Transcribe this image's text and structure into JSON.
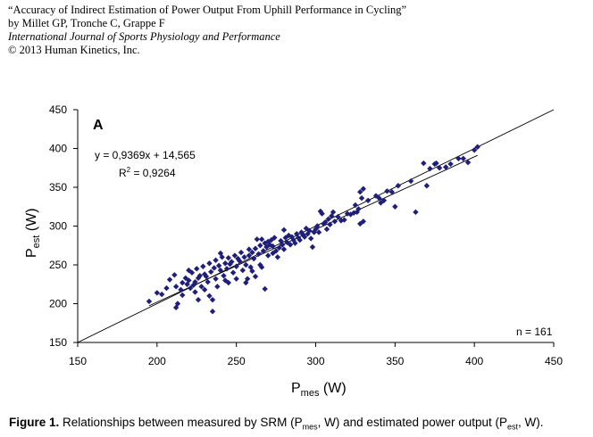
{
  "header": {
    "line1": "“Accuracy of Indirect Estimation of Power Output From Uphill Performance in Cycling”",
    "line2": "by Millet GP, Tronche C, Grappe F",
    "line3": "International Journal of Sports Physiology and Performance",
    "line4": "© 2013 Human Kinetics, Inc."
  },
  "caption": {
    "figure_label": "Figure 1.",
    "text_a": " Relationships between measured by SRM (P",
    "sub_a": "mes",
    "text_b": ", W) and estimated power output (P",
    "sub_b": "est",
    "text_c": ", W)."
  },
  "chart_data": {
    "type": "scatter",
    "panel_label": "A",
    "xlabel_main": "P",
    "xlabel_sub": "mes",
    "xlabel_unit": " (W)",
    "ylabel_main": "P",
    "ylabel_sub": "est",
    "ylabel_unit": " (W)",
    "xlim": [
      150,
      450
    ],
    "ylim": [
      150,
      450
    ],
    "xticks": [
      150,
      200,
      250,
      300,
      350,
      400,
      450
    ],
    "yticks": [
      150,
      200,
      250,
      300,
      350,
      400,
      450
    ],
    "grid": false,
    "equation": "y = 0,9369x + 14,565",
    "r2_prefix": "R",
    "r2_sup": "2",
    "r2_value": " = 0,9264",
    "n_label": "n = 161",
    "regression": {
      "slope": 0.9369,
      "intercept": 14.565
    },
    "identity_line": true,
    "marker_color": "#1f1f7a",
    "points": [
      [
        195,
        203
      ],
      [
        200,
        214
      ],
      [
        203,
        212
      ],
      [
        206,
        220
      ],
      [
        208,
        231
      ],
      [
        211,
        237
      ],
      [
        212,
        222
      ],
      [
        212,
        195
      ],
      [
        213,
        200
      ],
      [
        215,
        218
      ],
      [
        216,
        227
      ],
      [
        216,
        211
      ],
      [
        218,
        233
      ],
      [
        219,
        225
      ],
      [
        220,
        243
      ],
      [
        220,
        230
      ],
      [
        221,
        220
      ],
      [
        222,
        240
      ],
      [
        223,
        224
      ],
      [
        224,
        228
      ],
      [
        224,
        215
      ],
      [
        225,
        245
      ],
      [
        226,
        233
      ],
      [
        226,
        205
      ],
      [
        227,
        236
      ],
      [
        228,
        222
      ],
      [
        229,
        248
      ],
      [
        230,
        238
      ],
      [
        230,
        218
      ],
      [
        231,
        235
      ],
      [
        232,
        228
      ],
      [
        233,
        252
      ],
      [
        233,
        210
      ],
      [
        234,
        241
      ],
      [
        235,
        205
      ],
      [
        235,
        190
      ],
      [
        236,
        246
      ],
      [
        237,
        232
      ],
      [
        237,
        256
      ],
      [
        238,
        222
      ],
      [
        239,
        249
      ],
      [
        240,
        265
      ],
      [
        240,
        243
      ],
      [
        241,
        260
      ],
      [
        242,
        236
      ],
      [
        243,
        230
      ],
      [
        243,
        252
      ],
      [
        244,
        245
      ],
      [
        245,
        259
      ],
      [
        245,
        227
      ],
      [
        246,
        251
      ],
      [
        247,
        254
      ],
      [
        248,
        240
      ],
      [
        249,
        262
      ],
      [
        250,
        248
      ],
      [
        250,
        232
      ],
      [
        251,
        258
      ],
      [
        252,
        255
      ],
      [
        253,
        266
      ],
      [
        254,
        243
      ],
      [
        255,
        260
      ],
      [
        256,
        250
      ],
      [
        256,
        227
      ],
      [
        257,
        232
      ],
      [
        258,
        262
      ],
      [
        258,
        270
      ],
      [
        259,
        247
      ],
      [
        260,
        242
      ],
      [
        260,
        266
      ],
      [
        261,
        258
      ],
      [
        262,
        271
      ],
      [
        262,
        235
      ],
      [
        263,
        283
      ],
      [
        264,
        264
      ],
      [
        265,
        275
      ],
      [
        265,
        250
      ],
      [
        266,
        247
      ],
      [
        266,
        283
      ],
      [
        267,
        268
      ],
      [
        268,
        278
      ],
      [
        268,
        219
      ],
      [
        269,
        273
      ],
      [
        270,
        280
      ],
      [
        270,
        262
      ],
      [
        271,
        276
      ],
      [
        272,
        282
      ],
      [
        273,
        274
      ],
      [
        273,
        265
      ],
      [
        274,
        285
      ],
      [
        275,
        268
      ],
      [
        276,
        260
      ],
      [
        277,
        272
      ],
      [
        278,
        281
      ],
      [
        279,
        276
      ],
      [
        280,
        295
      ],
      [
        280,
        270
      ],
      [
        281,
        285
      ],
      [
        282,
        279
      ],
      [
        283,
        288
      ],
      [
        284,
        276
      ],
      [
        285,
        286
      ],
      [
        286,
        282
      ],
      [
        287,
        278
      ],
      [
        288,
        290
      ],
      [
        289,
        285
      ],
      [
        290,
        282
      ],
      [
        291,
        292
      ],
      [
        292,
        289
      ],
      [
        293,
        286
      ],
      [
        294,
        297
      ],
      [
        295,
        290
      ],
      [
        296,
        294
      ],
      [
        297,
        284
      ],
      [
        298,
        273
      ],
      [
        299,
        292
      ],
      [
        300,
        296
      ],
      [
        301,
        300
      ],
      [
        302,
        292
      ],
      [
        303,
        319
      ],
      [
        304,
        316
      ],
      [
        305,
        303
      ],
      [
        306,
        305
      ],
      [
        307,
        296
      ],
      [
        308,
        309
      ],
      [
        309,
        302
      ],
      [
        310,
        313
      ],
      [
        311,
        318
      ],
      [
        312,
        306
      ],
      [
        314,
        312
      ],
      [
        316,
        307
      ],
      [
        318,
        308
      ],
      [
        320,
        316
      ],
      [
        322,
        315
      ],
      [
        324,
        317
      ],
      [
        325,
        327
      ],
      [
        326,
        318
      ],
      [
        327,
        322
      ],
      [
        328,
        344
      ],
      [
        328,
        303
      ],
      [
        329,
        336
      ],
      [
        330,
        348
      ],
      [
        330,
        306
      ],
      [
        333,
        333
      ],
      [
        338,
        339
      ],
      [
        340,
        336
      ],
      [
        341,
        330
      ],
      [
        343,
        333
      ],
      [
        345,
        345
      ],
      [
        348,
        344
      ],
      [
        350,
        325
      ],
      [
        352,
        352
      ],
      [
        360,
        358
      ],
      [
        363,
        318
      ],
      [
        368,
        381
      ],
      [
        370,
        352
      ],
      [
        372,
        374
      ],
      [
        375,
        380
      ],
      [
        376,
        381
      ],
      [
        378,
        375
      ],
      [
        382,
        376
      ],
      [
        385,
        380
      ],
      [
        390,
        387
      ],
      [
        393,
        387
      ],
      [
        396,
        382
      ],
      [
        400,
        398
      ],
      [
        402,
        402
      ]
    ]
  }
}
